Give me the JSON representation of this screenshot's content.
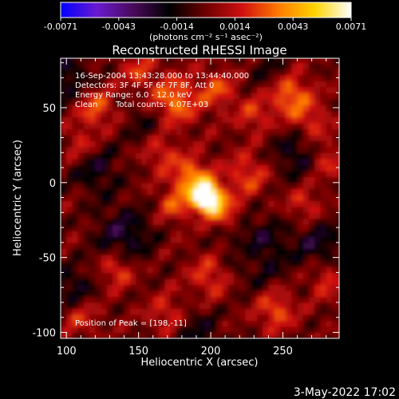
{
  "chart_data": {
    "type": "heatmap",
    "title": "Reconstructed RHESSI Image",
    "xlabel": "Heliocentric X (arcsec)",
    "ylabel": "Heliocentric Y (arcsec)",
    "xlim": [
      96,
      289
    ],
    "ylim": [
      -104,
      83
    ],
    "x_ticks": [
      100,
      150,
      200,
      250
    ],
    "y_ticks": [
      -100,
      -50,
      0,
      50
    ],
    "colorbar": {
      "range": [
        -0.0071,
        0.0071
      ],
      "ticks": [
        "-0.0071",
        "-0.0043",
        "-0.0014",
        "0.0014",
        "0.0043",
        "0.0071"
      ],
      "unit_label": "(photons cm⁻² s⁻¹ asec⁻²)",
      "colormap": [
        "#0000ff",
        "#6a1ad0",
        "#4a0a5a",
        "#000000",
        "#6e0000",
        "#d01010",
        "#ff7a00",
        "#ffd400",
        "#ffffff"
      ]
    },
    "annotations": {
      "time": "16-Sep-2004 13:43:28.000 to 13:44:40.000",
      "detectors": "Detectors: 3F 4F 5F 6F 7F 8F, Att 0",
      "energy": "Energy Range: 6.0 - 12.0 keV",
      "clean": "Clean",
      "counts": "Total counts: 4.07E+03",
      "peak": "Position of Peak = [198,-11]"
    },
    "peak": {
      "x": 198,
      "y": -11
    },
    "timestamp": "3-May-2022 17:02"
  }
}
